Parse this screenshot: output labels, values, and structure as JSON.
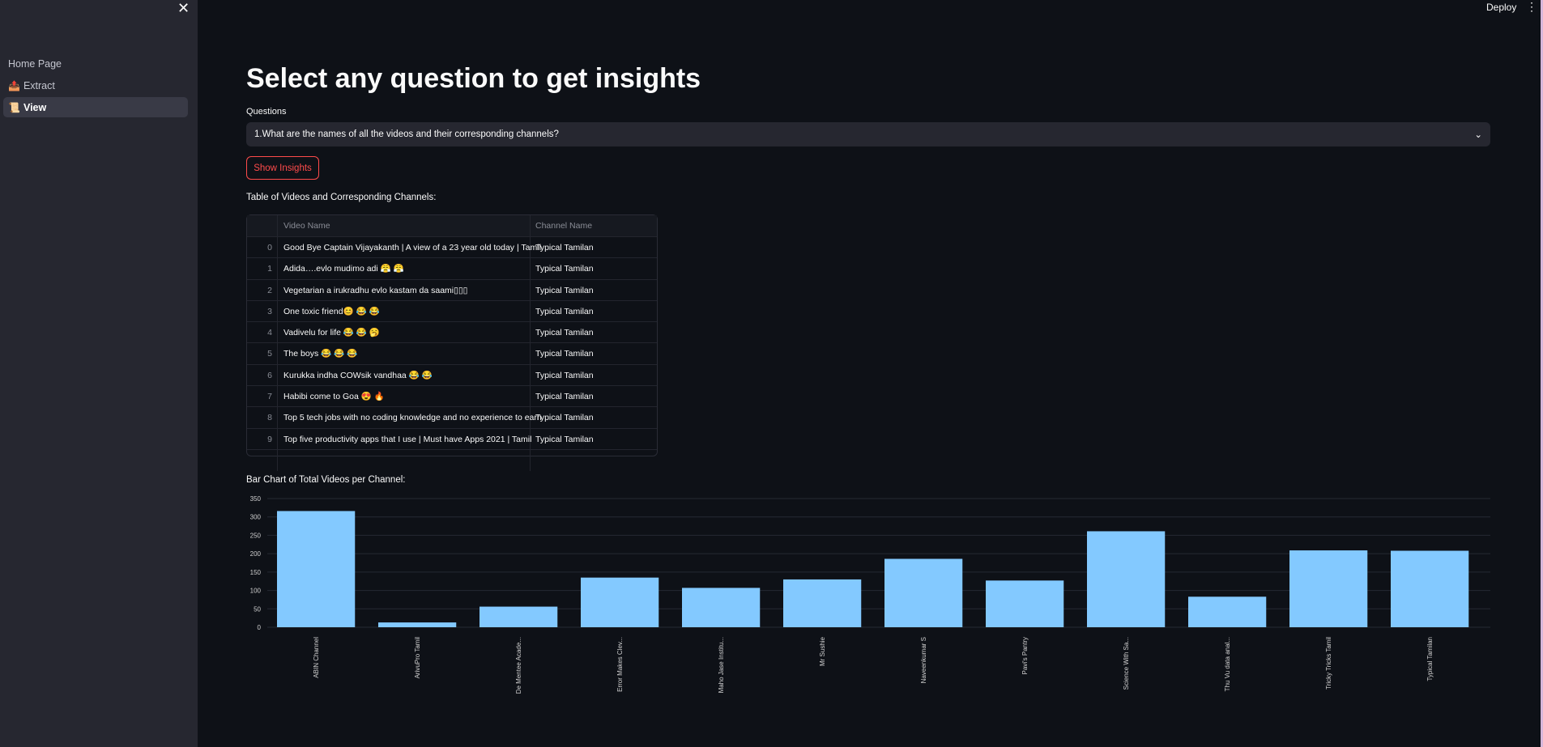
{
  "sidebar": {
    "close_icon": "close-icon",
    "items": [
      {
        "label": "Home Page",
        "icon": ""
      },
      {
        "label": "Extract",
        "icon": "📤"
      },
      {
        "label": "View",
        "icon": "📜",
        "active": true
      }
    ]
  },
  "header": {
    "deploy": "Deploy",
    "menu_icon": "kebab-menu-icon"
  },
  "main": {
    "title": "Select any question to get insights",
    "questions_label": "Questions",
    "selected_question": "1.What are the names of all the videos and their corresponding channels?",
    "show_button": "Show Insights",
    "table_label": "Table of Videos and Corresponding Channels:",
    "table": {
      "columns": [
        "",
        "Video Name",
        "Channel Name"
      ],
      "rows": [
        [
          "0",
          "Good Bye Captain Vijayakanth | A view of a 23 year old today | Tamil.",
          "Typical Tamilan"
        ],
        [
          "1",
          "Adida….evlo mudimo adi 😤 😤",
          "Typical Tamilan"
        ],
        [
          "2",
          "Vegetarian a irukradhu evlo kastam da saami▯▯▯",
          "Typical Tamilan"
        ],
        [
          "3",
          "One toxic friend😊 😂 😂",
          "Typical Tamilan"
        ],
        [
          "4",
          "Vadivelu for life 😂 😂 🥱",
          "Typical Tamilan"
        ],
        [
          "5",
          "The boys 😂 😂 😂",
          "Typical Tamilan"
        ],
        [
          "6",
          "Kurukka indha COWsik vandhaa 😂 😂",
          "Typical Tamilan"
        ],
        [
          "7",
          "Habibi come to Goa 😍 🔥",
          "Typical Tamilan"
        ],
        [
          "8",
          "Top 5 tech jobs with no coding knowledge and no experience to earn",
          "Typical Tamilan"
        ],
        [
          "9",
          "Top five productivity apps that I use | Must have Apps 2021 |  Tamil",
          "Typical Tamilan"
        ]
      ]
    },
    "chart_label": "Bar Chart of Total Videos per Channel:"
  },
  "chart_data": {
    "type": "bar",
    "categories": [
      "ABIN Channel",
      "ArivuPro Tamil",
      "De Mentee Acade...",
      "Error Makes Clev...",
      "Maho Jase Institu...",
      "Mr Sushie",
      "Naveenkumar S",
      "Pavi's Pantry",
      "Science With Sa...",
      "Thu Vu data anal...",
      "Tricky Tricks Tamil",
      "Typical Tamilan"
    ],
    "values": [
      316,
      13,
      56,
      135,
      107,
      130,
      186,
      127,
      261,
      83,
      209,
      208
    ],
    "yticks": [
      0,
      50,
      100,
      150,
      200,
      250,
      300,
      350
    ],
    "ylim": [
      0,
      350
    ],
    "grid": true,
    "bar_color": "#83c9ff"
  }
}
